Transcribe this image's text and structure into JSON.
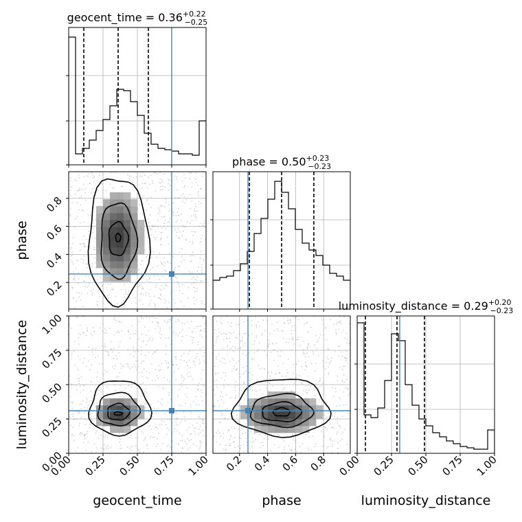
{
  "chart_data": {
    "type": "corner",
    "parameters": [
      "geocent_time",
      "phase",
      "luminosity_distance"
    ],
    "truths": {
      "geocent_time": 0.75,
      "phase": 0.26,
      "luminosity_distance": 0.31
    },
    "colors": {
      "truth": "#4682b4",
      "hist": "#000000",
      "grid": "#b0b0b0",
      "scatter": "#9a9a9a"
    },
    "titles": [
      {
        "param": "geocent_time",
        "prefix": "geocent_time = 0.36",
        "plus": "+0.22",
        "minus": "−0.25"
      },
      {
        "param": "phase",
        "prefix": "phase = 0.50",
        "plus": "+0.23",
        "minus": "−0.23"
      },
      {
        "param": "luminosity_distance",
        "prefix": "luminosity_distance = 0.29",
        "plus": "+0.20",
        "minus": "−0.23"
      }
    ],
    "quantiles": {
      "geocent_time": [
        0.11,
        0.36,
        0.58
      ],
      "phase": [
        0.27,
        0.5,
        0.73
      ],
      "luminosity_distance": [
        0.06,
        0.29,
        0.49
      ]
    },
    "ranges": {
      "geocent_time": [
        0.0,
        1.0
      ],
      "phase": [
        0.01,
        0.99
      ],
      "luminosity_distance": [
        0.0,
        1.0
      ]
    },
    "histograms": {
      "geocent_time": [
        0.93,
        0.08,
        0.12,
        0.18,
        0.25,
        0.33,
        0.43,
        0.55,
        0.54,
        0.46,
        0.36,
        0.23,
        0.15,
        0.12,
        0.11,
        0.1,
        0.08,
        0.08,
        0.07,
        0.32
      ],
      "phase": [
        0.21,
        0.23,
        0.24,
        0.28,
        0.33,
        0.42,
        0.55,
        0.66,
        0.8,
        0.93,
        0.85,
        0.73,
        0.58,
        0.48,
        0.43,
        0.39,
        0.32,
        0.26,
        0.24,
        0.21
      ],
      "luminosity_distance": [
        0.95,
        0.28,
        0.26,
        0.33,
        0.53,
        0.87,
        0.82,
        0.5,
        0.35,
        0.25,
        0.2,
        0.15,
        0.12,
        0.09,
        0.07,
        0.05,
        0.04,
        0.03,
        0.03,
        0.17
      ]
    },
    "ticks": {
      "geocent_time": [
        "0.00",
        "0.25",
        "0.50",
        "0.75",
        "1.00"
      ],
      "phase": [
        "0.2",
        "0.4",
        "0.6",
        "0.8"
      ],
      "luminosity_distance": [
        "0.00",
        "0.25",
        "0.50",
        "0.75",
        "1.00"
      ]
    },
    "tick_values": {
      "geocent_time": [
        0.0,
        0.25,
        0.5,
        0.75,
        1.0
      ],
      "phase": [
        0.2,
        0.4,
        0.6,
        0.8
      ],
      "luminosity_distance": [
        0.0,
        0.25,
        0.5,
        0.75,
        1.0
      ]
    },
    "axis_labels": {
      "x": [
        "geocent_time",
        "phase",
        "luminosity_distance"
      ],
      "y": [
        "phase",
        "luminosity_distance"
      ]
    },
    "panels_2d": [
      {
        "name": "phase-vs-geocent_time",
        "x": "geocent_time",
        "y": "phase",
        "peak": [
          0.36,
          0.52
        ],
        "spread": [
          0.11,
          0.21
        ],
        "contours": [
          [
            [
              0.36,
              0.52,
              0.018,
              0.03
            ]
          ],
          [
            [
              0.36,
              0.51,
              0.07,
              0.12
            ]
          ],
          [
            [
              0.36,
              0.5,
              0.13,
              0.27
            ]
          ],
          [
            [
              0.36,
              0.5,
              0.22,
              0.45
            ]
          ]
        ]
      },
      {
        "name": "luminosity_distance-vs-geocent_time",
        "x": "geocent_time",
        "y": "luminosity_distance",
        "peak": [
          0.36,
          0.29
        ],
        "spread": [
          0.11,
          0.08
        ],
        "contours": [
          [
            [
              0.36,
              0.29,
              0.03,
              0.012
            ]
          ],
          [
            [
              0.36,
              0.3,
              0.08,
              0.06
            ]
          ],
          [
            [
              0.36,
              0.32,
              0.15,
              0.12
            ]
          ],
          [
            [
              0.37,
              0.33,
              0.22,
              0.2
            ]
          ]
        ]
      },
      {
        "name": "luminosity_distance-vs-phase",
        "x": "phase",
        "y": "luminosity_distance",
        "peak": [
          0.5,
          0.29
        ],
        "spread": [
          0.18,
          0.09
        ],
        "contours": [
          [
            [
              0.5,
              0.3,
              0.06,
              0.03
            ]
          ],
          [
            [
              0.5,
              0.3,
              0.14,
              0.07
            ]
          ],
          [
            [
              0.5,
              0.31,
              0.22,
              0.12
            ]
          ],
          [
            [
              0.5,
              0.33,
              0.34,
              0.21
            ]
          ]
        ]
      }
    ]
  }
}
